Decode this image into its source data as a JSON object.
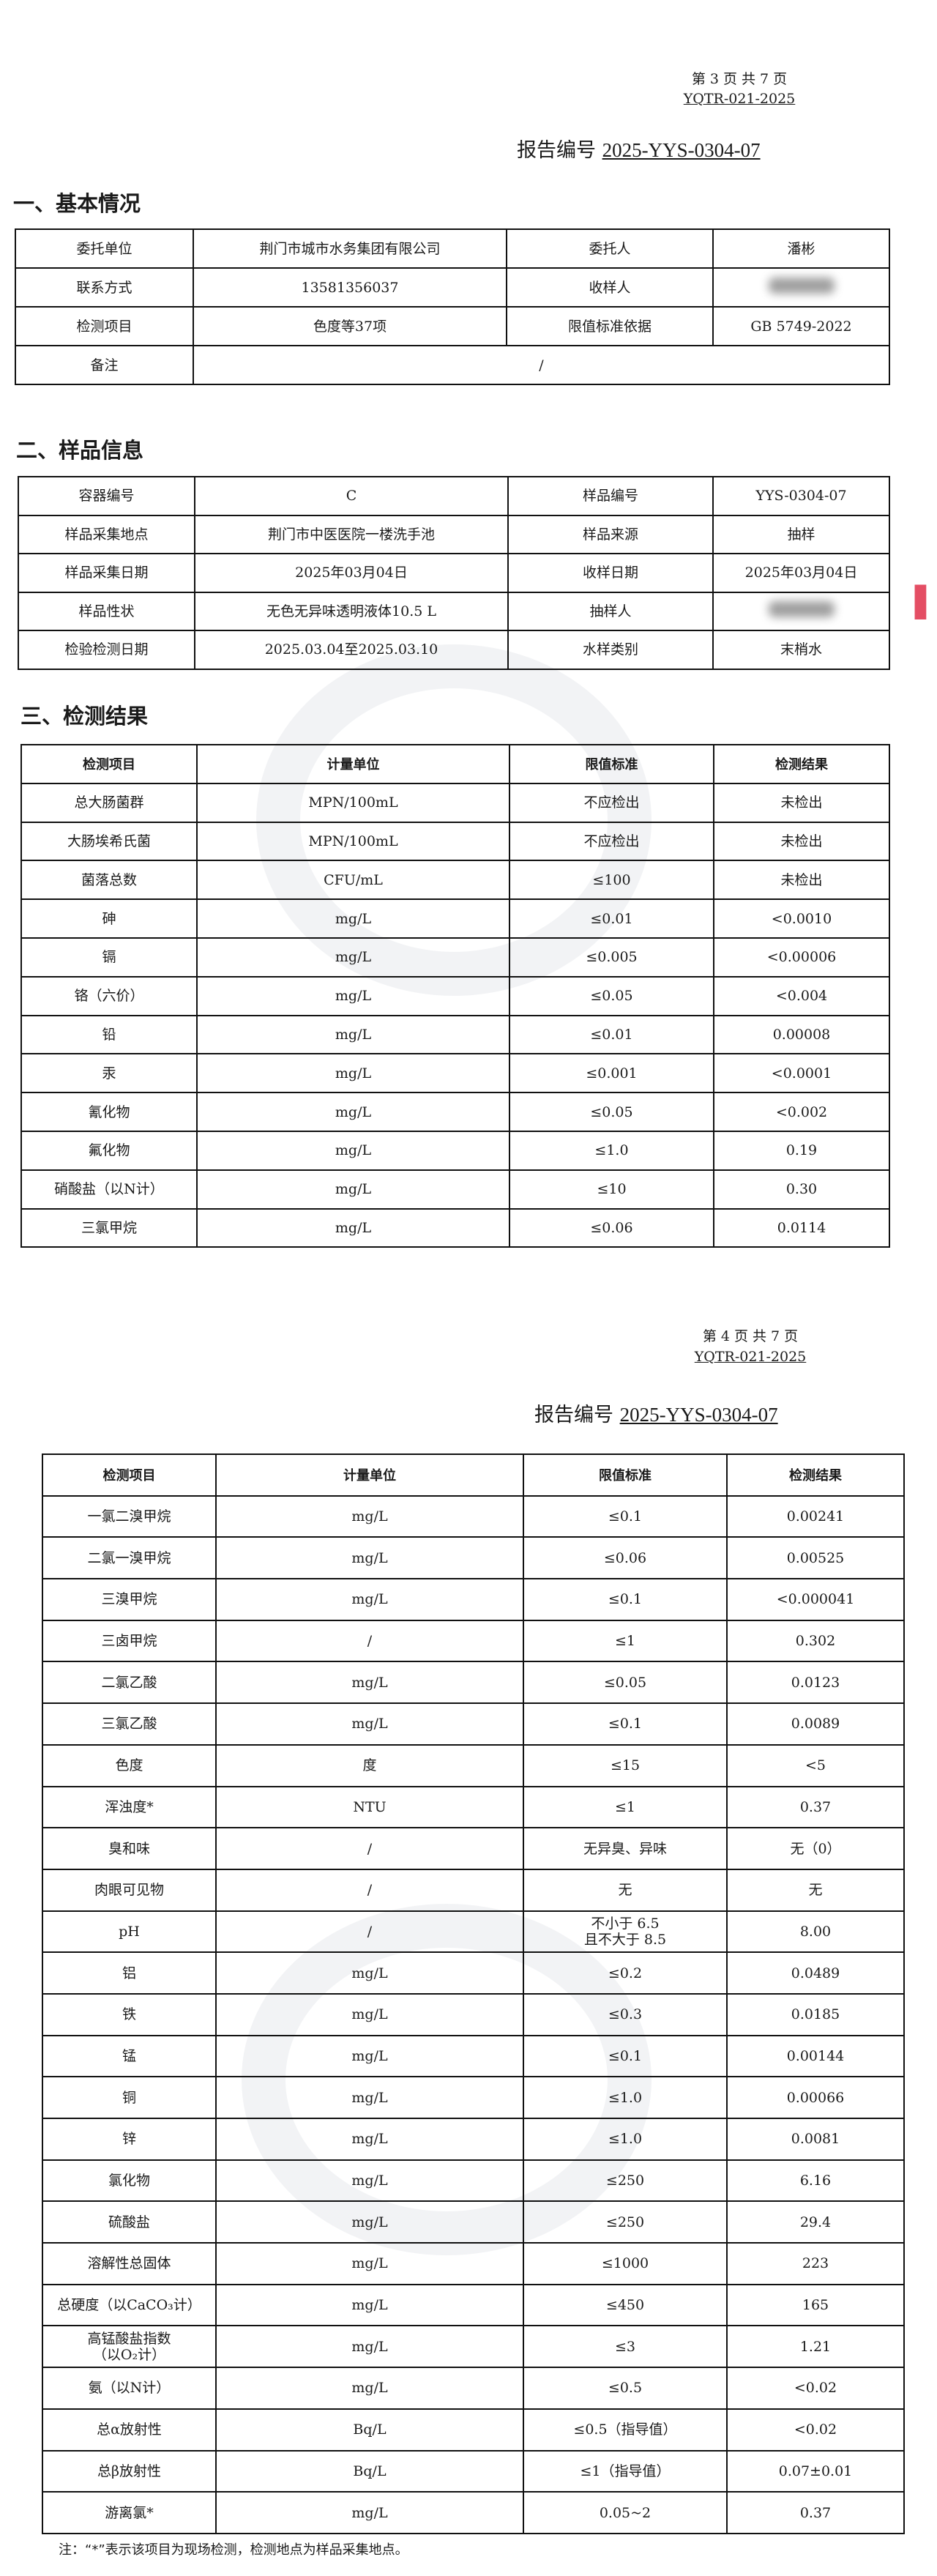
{
  "page1": {
    "page_info": "第 3 页 共 7 页",
    "doc_code": "YQTR-021-2025",
    "report_label": "报告编号",
    "report_no": "2025-YYS-0304-07",
    "section1_title": "一、基本情况",
    "basic": [
      [
        "委托单位",
        "荆门市城市水务集团有限公司",
        "委托人",
        "潘彬"
      ],
      [
        "联系方式",
        "13581356037",
        "收样人",
        ""
      ],
      [
        "检测项目",
        "色度等37项",
        "限值标准依据",
        "GB 5749-2022"
      ]
    ],
    "remark_label": "备注",
    "remark_value": "/",
    "section2_title": "二、样品信息",
    "sample": [
      [
        "容器编号",
        "C",
        "样品编号",
        "YYS-0304-07"
      ],
      [
        "样品采集地点",
        "荆门市中医医院一楼洗手池",
        "样品来源",
        "抽样"
      ],
      [
        "样品采集日期",
        "2025年03月04日",
        "收样日期",
        "2025年03月04日"
      ],
      [
        "样品性状",
        "无色无异味透明液体10.5 L",
        "抽样人",
        ""
      ],
      [
        "检验检测日期",
        "2025.03.04至2025.03.10",
        "水样类别",
        "末梢水"
      ]
    ],
    "section3_title": "三、检测结果",
    "results_header": [
      "检测项目",
      "计量单位",
      "限值标准",
      "检测结果"
    ],
    "results": [
      [
        "总大肠菌群",
        "MPN/100mL",
        "不应检出",
        "未检出"
      ],
      [
        "大肠埃希氏菌",
        "MPN/100mL",
        "不应检出",
        "未检出"
      ],
      [
        "菌落总数",
        "CFU/mL",
        "≤100",
        "未检出"
      ],
      [
        "砷",
        "mg/L",
        "≤0.01",
        "<0.0010"
      ],
      [
        "镉",
        "mg/L",
        "≤0.005",
        "<0.00006"
      ],
      [
        "铬（六价）",
        "mg/L",
        "≤0.05",
        "<0.004"
      ],
      [
        "铅",
        "mg/L",
        "≤0.01",
        "0.00008"
      ],
      [
        "汞",
        "mg/L",
        "≤0.001",
        "<0.0001"
      ],
      [
        "氰化物",
        "mg/L",
        "≤0.05",
        "<0.002"
      ],
      [
        "氟化物",
        "mg/L",
        "≤1.0",
        "0.19"
      ],
      [
        "硝酸盐（以N计）",
        "mg/L",
        "≤10",
        "0.30"
      ],
      [
        "三氯甲烷",
        "mg/L",
        "≤0.06",
        "0.0114"
      ]
    ]
  },
  "page2": {
    "page_info": "第 4 页 共 7 页",
    "doc_code": "YQTR-021-2025",
    "report_label": "报告编号",
    "report_no": "2025-YYS-0304-07",
    "results_header": [
      "检测项目",
      "计量单位",
      "限值标准",
      "检测结果"
    ],
    "results": [
      [
        "一氯二溴甲烷",
        "mg/L",
        "≤0.1",
        "0.00241"
      ],
      [
        "二氯一溴甲烷",
        "mg/L",
        "≤0.06",
        "0.00525"
      ],
      [
        "三溴甲烷",
        "mg/L",
        "≤0.1",
        "<0.000041"
      ],
      [
        "三卤甲烷",
        "/",
        "≤1",
        "0.302"
      ],
      [
        "二氯乙酸",
        "mg/L",
        "≤0.05",
        "0.0123"
      ],
      [
        "三氯乙酸",
        "mg/L",
        "≤0.1",
        "0.0089"
      ],
      [
        "色度",
        "度",
        "≤15",
        "<5"
      ],
      [
        "浑浊度*",
        "NTU",
        "≤1",
        "0.37"
      ],
      [
        "臭和味",
        "/",
        "无异臭、异味",
        "无（0）"
      ],
      [
        "肉眼可见物",
        "/",
        "无",
        "无"
      ],
      [
        "pH",
        "/",
        "不小于 6.5\n且不大于 8.5",
        "8.00"
      ],
      [
        "铝",
        "mg/L",
        "≤0.2",
        "0.0489"
      ],
      [
        "铁",
        "mg/L",
        "≤0.3",
        "0.0185"
      ],
      [
        "锰",
        "mg/L",
        "≤0.1",
        "0.00144"
      ],
      [
        "铜",
        "mg/L",
        "≤1.0",
        "0.00066"
      ],
      [
        "锌",
        "mg/L",
        "≤1.0",
        "0.0081"
      ],
      [
        "氯化物",
        "mg/L",
        "≤250",
        "6.16"
      ],
      [
        "硫酸盐",
        "mg/L",
        "≤250",
        "29.4"
      ],
      [
        "溶解性总固体",
        "mg/L",
        "≤1000",
        "223"
      ],
      [
        "总硬度（以CaCO₃计）",
        "mg/L",
        "≤450",
        "165"
      ],
      [
        "高锰酸盐指数\n（以O₂计）",
        "mg/L",
        "≤3",
        "1.21"
      ],
      [
        "氨（以N计）",
        "mg/L",
        "≤0.5",
        "<0.02"
      ],
      [
        "总α放射性",
        "Bq/L",
        "≤0.5（指导值）",
        "<0.02"
      ],
      [
        "总β放射性",
        "Bq/L",
        "≤1（指导值）",
        "0.07±0.01"
      ],
      [
        "游离氯*",
        "mg/L",
        "0.05~2",
        "0.37"
      ]
    ],
    "note": "注：“*”表示该项目为现场检测，检测地点为样品采集地点。"
  }
}
